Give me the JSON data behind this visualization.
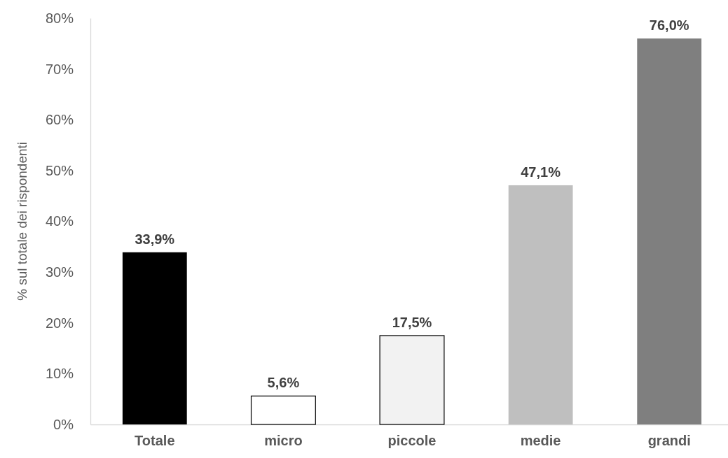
{
  "chart_data": {
    "type": "bar",
    "ylabel": "% sul totale dei rispondenti",
    "categories": [
      "Totale",
      "micro",
      "piccole",
      "medie",
      "grandi"
    ],
    "values": [
      33.9,
      5.6,
      17.5,
      47.1,
      76.0
    ],
    "colors": [
      "#000000",
      "#ffffff",
      "#f2f2f2",
      "#bfbfbf",
      "#7f7f7f"
    ],
    "value_labels": [
      "33,9%",
      "5,6%",
      "17,5%",
      "47,1%",
      "76,0%"
    ],
    "ylim": [
      0,
      80
    ],
    "yticks": [
      {
        "value": 0,
        "label": "0%"
      },
      {
        "value": 10,
        "label": "10%"
      },
      {
        "value": 20,
        "label": "20%"
      },
      {
        "value": 30,
        "label": "30%"
      },
      {
        "value": 40,
        "label": "40%"
      },
      {
        "value": 50,
        "label": "50%"
      },
      {
        "value": 60,
        "label": "60%"
      },
      {
        "value": 70,
        "label": "70%"
      },
      {
        "value": 80,
        "label": "80%"
      }
    ]
  }
}
